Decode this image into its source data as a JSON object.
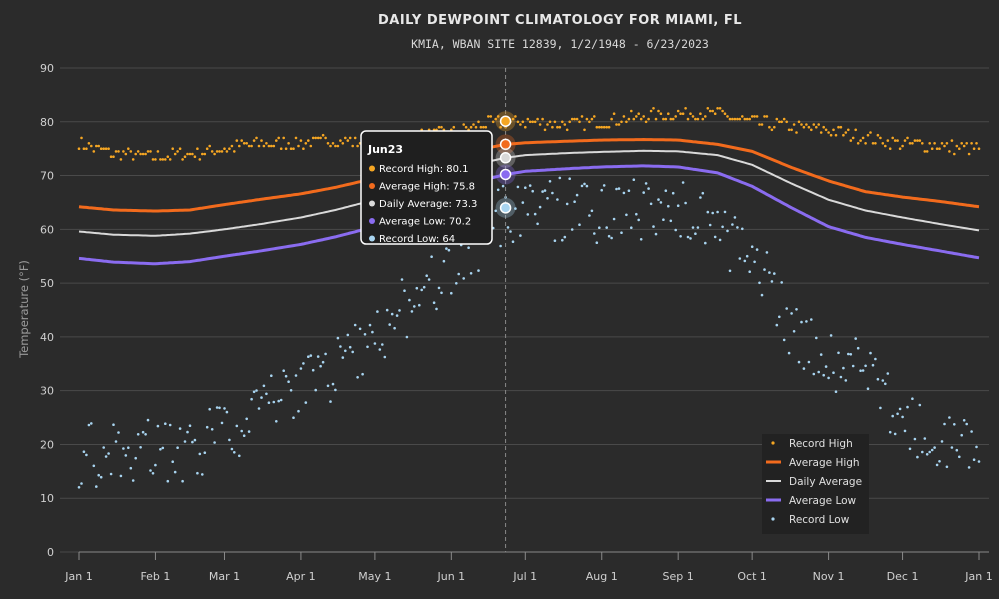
{
  "chart_data": {
    "type": "line",
    "title": "DAILY DEWPOINT CLIMATOLOGY FOR MIAMI, FL",
    "subtitle": "KMIA, WBAN SITE 12839, 1/2/1948 - 6/23/2023",
    "ylabel": "Temperature (°F)",
    "xlabel": "",
    "ylim": [
      0,
      90
    ],
    "yticks": [
      0,
      10,
      20,
      30,
      40,
      50,
      60,
      70,
      80,
      90
    ],
    "xticks": [
      {
        "label": "Jan 1",
        "day": 1
      },
      {
        "label": "Feb 1",
        "day": 32
      },
      {
        "label": "Mar 1",
        "day": 60
      },
      {
        "label": "Apr 1",
        "day": 91
      },
      {
        "label": "May 1",
        "day": 121
      },
      {
        "label": "Jun 1",
        "day": 152
      },
      {
        "label": "Jul 1",
        "day": 182
      },
      {
        "label": "Aug 1",
        "day": 213
      },
      {
        "label": "Sep 1",
        "day": 244
      },
      {
        "label": "Oct 1",
        "day": 274
      },
      {
        "label": "Nov 1",
        "day": 305
      },
      {
        "label": "Dec 1",
        "day": 335
      },
      {
        "label": "Jan 1",
        "day": 366
      }
    ],
    "grid": true,
    "legend_position": "bottom-right",
    "series": [
      {
        "name": "Record High",
        "kind": "points",
        "color": "#f5a623",
        "anchors": [
          [
            1,
            76
          ],
          [
            15,
            74
          ],
          [
            32,
            73.5
          ],
          [
            46,
            74
          ],
          [
            60,
            75
          ],
          [
            75,
            76
          ],
          [
            91,
            76
          ],
          [
            105,
            76.5
          ],
          [
            121,
            76
          ],
          [
            135,
            77
          ],
          [
            152,
            78
          ],
          [
            165,
            79.5
          ],
          [
            174,
            80.1
          ],
          [
            182,
            80
          ],
          [
            200,
            79.5
          ],
          [
            213,
            80
          ],
          [
            230,
            81
          ],
          [
            244,
            81.5
          ],
          [
            260,
            81.5
          ],
          [
            274,
            80
          ],
          [
            290,
            79
          ],
          [
            305,
            78.5
          ],
          [
            320,
            77
          ],
          [
            335,
            76
          ],
          [
            350,
            75.5
          ],
          [
            366,
            75
          ]
        ]
      },
      {
        "name": "Average High",
        "kind": "line",
        "color": "#f26b1d",
        "anchors": [
          [
            1,
            64.2
          ],
          [
            15,
            63.6
          ],
          [
            32,
            63.4
          ],
          [
            46,
            63.6
          ],
          [
            60,
            64.6
          ],
          [
            75,
            65.6
          ],
          [
            91,
            66.6
          ],
          [
            105,
            67.8
          ],
          [
            121,
            69.5
          ],
          [
            135,
            71.5
          ],
          [
            152,
            73.8
          ],
          [
            165,
            75.0
          ],
          [
            174,
            75.8
          ],
          [
            182,
            76.1
          ],
          [
            200,
            76.4
          ],
          [
            213,
            76.6
          ],
          [
            230,
            76.7
          ],
          [
            244,
            76.6
          ],
          [
            260,
            75.8
          ],
          [
            274,
            74.5
          ],
          [
            290,
            71.5
          ],
          [
            305,
            69.0
          ],
          [
            320,
            67.0
          ],
          [
            335,
            66.0
          ],
          [
            350,
            65.2
          ],
          [
            366,
            64.2
          ]
        ]
      },
      {
        "name": "Daily Average",
        "kind": "line",
        "color": "#d9d9d9",
        "anchors": [
          [
            1,
            59.6
          ],
          [
            15,
            59.0
          ],
          [
            32,
            58.8
          ],
          [
            46,
            59.2
          ],
          [
            60,
            60.0
          ],
          [
            75,
            61.0
          ],
          [
            91,
            62.2
          ],
          [
            105,
            63.6
          ],
          [
            121,
            65.5
          ],
          [
            135,
            68.0
          ],
          [
            152,
            70.8
          ],
          [
            165,
            72.4
          ],
          [
            174,
            73.3
          ],
          [
            182,
            73.8
          ],
          [
            200,
            74.2
          ],
          [
            213,
            74.4
          ],
          [
            230,
            74.6
          ],
          [
            244,
            74.5
          ],
          [
            260,
            73.8
          ],
          [
            274,
            72.0
          ],
          [
            290,
            68.5
          ],
          [
            305,
            65.5
          ],
          [
            320,
            63.5
          ],
          [
            335,
            62.2
          ],
          [
            350,
            61.0
          ],
          [
            366,
            59.8
          ]
        ]
      },
      {
        "name": "Average Low",
        "kind": "line",
        "color": "#8a6cf0",
        "anchors": [
          [
            1,
            54.6
          ],
          [
            15,
            53.9
          ],
          [
            32,
            53.6
          ],
          [
            46,
            54.0
          ],
          [
            60,
            55.0
          ],
          [
            75,
            56.0
          ],
          [
            91,
            57.2
          ],
          [
            105,
            58.6
          ],
          [
            121,
            60.5
          ],
          [
            135,
            63.5
          ],
          [
            152,
            67.0
          ],
          [
            165,
            69.2
          ],
          [
            174,
            70.2
          ],
          [
            182,
            70.8
          ],
          [
            200,
            71.3
          ],
          [
            213,
            71.6
          ],
          [
            230,
            71.8
          ],
          [
            244,
            71.6
          ],
          [
            260,
            70.5
          ],
          [
            274,
            68.0
          ],
          [
            290,
            64.0
          ],
          [
            305,
            60.5
          ],
          [
            320,
            58.5
          ],
          [
            335,
            57.2
          ],
          [
            350,
            56.0
          ],
          [
            366,
            54.7
          ]
        ]
      },
      {
        "name": "Record Low",
        "kind": "points",
        "color": "#a8d4f0",
        "anchors": [
          [
            1,
            18
          ],
          [
            15,
            18
          ],
          [
            32,
            19
          ],
          [
            46,
            19
          ],
          [
            60,
            22
          ],
          [
            75,
            26
          ],
          [
            91,
            30
          ],
          [
            105,
            34
          ],
          [
            121,
            40
          ],
          [
            135,
            46
          ],
          [
            152,
            54
          ],
          [
            165,
            59
          ],
          [
            174,
            64
          ],
          [
            182,
            63
          ],
          [
            200,
            64
          ],
          [
            213,
            63
          ],
          [
            230,
            64
          ],
          [
            244,
            64
          ],
          [
            260,
            60
          ],
          [
            274,
            55
          ],
          [
            290,
            42
          ],
          [
            305,
            36
          ],
          [
            320,
            34
          ],
          [
            335,
            24
          ],
          [
            350,
            20
          ],
          [
            366,
            20
          ]
        ],
        "spread": 6
      }
    ],
    "highlight": {
      "day": 174,
      "label": "Jun23",
      "values": [
        {
          "label": "Record High: 80.1",
          "value": 80.1,
          "color": "#f5a623"
        },
        {
          "label": "Average High: 75.8",
          "value": 75.8,
          "color": "#f26b1d"
        },
        {
          "label": "Daily Average: 73.3",
          "value": 73.3,
          "color": "#d9d9d9"
        },
        {
          "label": "Average Low: 70.2",
          "value": 70.2,
          "color": "#8a6cf0"
        },
        {
          "label": "Record Low: 64",
          "value": 64,
          "color": "#a8d4f0"
        }
      ]
    }
  },
  "colors": {
    "background": "#2b2b2b",
    "grid": "#4a4a4a",
    "crosshair": "#888888",
    "tooltip_bg": "#1f1f1f"
  }
}
